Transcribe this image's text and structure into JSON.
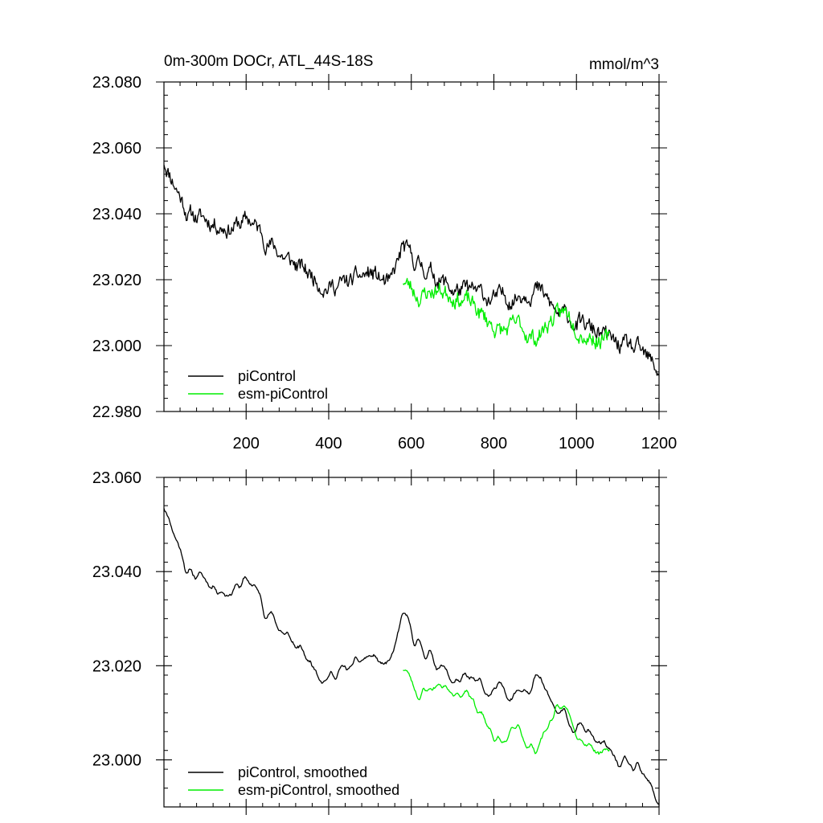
{
  "chart_data": [
    {
      "type": "line",
      "title": "0m-300m DOCr, ATL_44S-18S",
      "units": "mmol/m^3",
      "xlim": [
        1,
        1200
      ],
      "ylim": [
        22.98,
        23.08
      ],
      "xticks": [
        200,
        400,
        600,
        800,
        1000,
        1200
      ],
      "xtick_labels": [
        "200",
        "400",
        "600",
        "800",
        "1000",
        "1200"
      ],
      "yticks": [
        22.98,
        23.0,
        23.02,
        23.04,
        23.06,
        23.08
      ],
      "ytick_labels": [
        "22.980",
        "23.000",
        "23.020",
        "23.040",
        "23.060",
        "23.080"
      ],
      "legend": [
        "piControl",
        "esm-piControl"
      ],
      "legend_position": "bottom-left",
      "series": [
        {
          "name": "piControl",
          "color": "#000000",
          "trend_x": [
            1,
            25,
            60,
            110,
            160,
            210,
            250,
            300,
            350,
            400,
            450,
            500,
            550,
            580,
            600,
            650,
            700,
            750,
            800,
            850,
            900,
            950,
            1000,
            1050,
            1100,
            1150,
            1200
          ],
          "trend_y": [
            23.056,
            23.05,
            23.04,
            23.038,
            23.036,
            23.038,
            23.032,
            23.026,
            23.022,
            23.018,
            23.019,
            23.022,
            23.018,
            23.03,
            23.026,
            23.022,
            23.017,
            23.016,
            23.014,
            23.015,
            23.018,
            23.01,
            23.007,
            23.004,
            23.0,
            22.998,
            22.992
          ],
          "noise": 0.0045,
          "seed": 11
        },
        {
          "name": "esm-piControl",
          "color": "#00ee00",
          "trend_x": [
            580,
            620,
            660,
            700,
            740,
            780,
            820,
            860,
            900,
            940,
            980,
            1020,
            1060,
            1080
          ],
          "trend_y": [
            23.02,
            23.015,
            23.017,
            23.016,
            23.013,
            23.008,
            23.004,
            23.006,
            23.002,
            23.008,
            23.01,
            23.004,
            23.002,
            23.001
          ],
          "noise": 0.0045,
          "seed": 23
        }
      ]
    },
    {
      "type": "line",
      "title": "",
      "xlim": [
        1,
        1200
      ],
      "ylim": [
        22.99,
        23.06
      ],
      "yticks": [
        23.0,
        23.02,
        23.04,
        23.06
      ],
      "ytick_labels": [
        "23.000",
        "23.020",
        "23.040",
        "23.060"
      ],
      "legend": [
        "piControl, smoothed",
        "esm-piControl, smoothed"
      ],
      "legend_position": "bottom-left",
      "series": [
        {
          "name": "piControl, smoothed",
          "color": "#000000",
          "trend_x": [
            1,
            25,
            60,
            110,
            160,
            210,
            250,
            300,
            350,
            400,
            450,
            500,
            550,
            580,
            600,
            650,
            700,
            750,
            800,
            850,
            900,
            950,
            1000,
            1050,
            1100,
            1150,
            1200
          ],
          "trend_y": [
            23.055,
            23.049,
            23.04,
            23.038,
            23.036,
            23.038,
            23.032,
            23.026,
            23.021,
            23.018,
            23.019,
            23.022,
            23.019,
            23.031,
            23.026,
            23.022,
            23.017,
            23.016,
            23.014,
            23.015,
            23.018,
            23.01,
            23.007,
            23.004,
            22.999,
            22.997,
            22.991
          ],
          "noise": 0.0032,
          "seed": 11
        },
        {
          "name": "esm-piControl, smoothed",
          "color": "#00ee00",
          "trend_x": [
            580,
            620,
            660,
            700,
            740,
            780,
            820,
            860,
            900,
            940,
            980,
            1020,
            1060,
            1080
          ],
          "trend_y": [
            23.02,
            23.014,
            23.016,
            23.016,
            23.013,
            23.008,
            23.003,
            23.006,
            23.002,
            23.009,
            23.011,
            23.005,
            23.002,
            23.0
          ],
          "noise": 0.003,
          "seed": 23
        }
      ]
    }
  ]
}
